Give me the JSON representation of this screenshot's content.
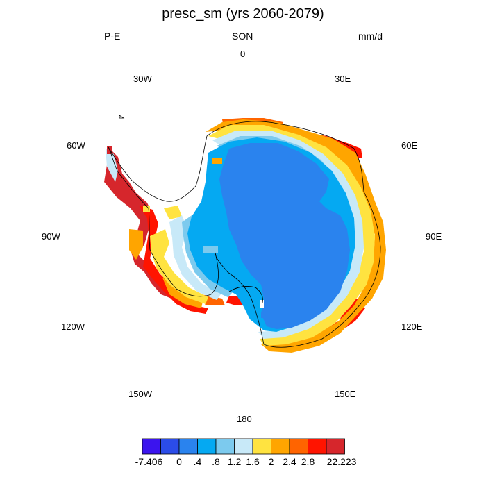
{
  "title": "presc_sm (yrs 2060-2079)",
  "left_label": "P-E",
  "center_label": "SON",
  "right_label": "mm/d",
  "lon_labels": {
    "n": "0",
    "ne": "30E",
    "e1": "60E",
    "e2": "90E",
    "e3": "120E",
    "se": "150E",
    "s": "180",
    "sw": "150W",
    "w3": "120W",
    "w2": "90W",
    "w1": "60W",
    "nw": "30W"
  },
  "colorbar": {
    "colors": [
      "#3b14ee",
      "#2b4ce8",
      "#2a83ee",
      "#05a9f2",
      "#7ccaee",
      "#c8e9f8",
      "#ffe340",
      "#ffa500",
      "#ff6400",
      "#ff1400",
      "#d6262c"
    ],
    "labels": [
      "-7.406",
      "0",
      ".4",
      ".8",
      "1.2",
      "1.6",
      "2",
      "2.4",
      "2.8",
      "22.223"
    ]
  },
  "map_fill_colors": {
    "interior": "#2a83ee",
    "ring_inner": "#05a9f2",
    "ring_light": "#7ccaee",
    "ring_pale": "#c8e9f8",
    "yellow": "#ffe340",
    "orange": "#ffa500",
    "dark_orange": "#ff6400",
    "red": "#ff1400",
    "dark_red": "#d6262c"
  }
}
